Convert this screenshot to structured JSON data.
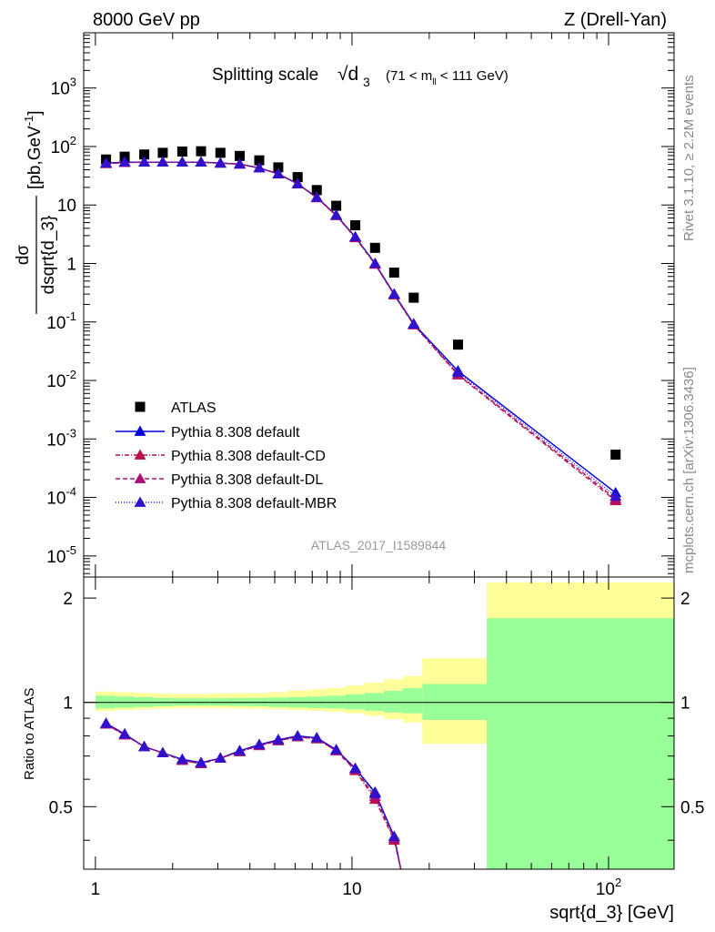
{
  "header": {
    "left": "8000 GeV pp",
    "right": "Z (Drell-Yan)"
  },
  "side_labels": {
    "rivet": "Rivet 3.1.10, ≥ 2.2M events",
    "mcplots": "mcplots.cern.ch [arXiv:1306.3436]"
  },
  "chart_data": [
    {
      "type": "scatter",
      "title": "Splitting scale",
      "title_symbol": "√d",
      "title_sub": "3",
      "title_cut": "(71 < m",
      "title_cut_sub": "ll",
      "title_cut_end": " < 111 GeV)",
      "ylabel": "dσ / dsqrt{d_3} [pb,GeV⁻¹]",
      "ylabel_num": "dσ",
      "ylabel_den": "dsqrt{d_3}",
      "ylabel_units": "[pb,GeV",
      "ylabel_units_sup": "-1",
      "ylabel_units_end": "]",
      "watermark": "ATLAS_2017_I1589844",
      "xscale": "log",
      "yscale": "log",
      "xlim": [
        0.9,
        180
      ],
      "ylim": [
        4.36e-06,
        8800
      ],
      "y_ticks": [
        {
          "v": 1e-05,
          "m": "10",
          "e": "-5"
        },
        {
          "v": 0.0001,
          "m": "10",
          "e": "-4"
        },
        {
          "v": 0.001,
          "m": "10",
          "e": "-3"
        },
        {
          "v": 0.01,
          "m": "10",
          "e": "-2"
        },
        {
          "v": 0.1,
          "m": "10",
          "e": "-1"
        },
        {
          "v": 1,
          "m": "1",
          "e": ""
        },
        {
          "v": 10,
          "m": "10",
          "e": ""
        },
        {
          "v": 100,
          "m": "10",
          "e": "2"
        },
        {
          "v": 1000,
          "m": "10",
          "e": "3"
        }
      ],
      "legend": {
        "position": "left",
        "entries": [
          "ATLAS",
          "Pythia 8.308 default",
          "Pythia 8.308 default-CD",
          "Pythia 8.308 default-DL",
          "Pythia 8.308 default-MBR"
        ]
      },
      "series": [
        {
          "name": "ATLAS",
          "marker": "square",
          "color": "#000000",
          "x": [
            1.1,
            1.3,
            1.55,
            1.83,
            2.18,
            2.58,
            3.07,
            3.65,
            4.35,
            5.16,
            6.14,
            7.29,
            8.68,
            10.3,
            12.3,
            14.6,
            17.4,
            25.9,
            106.5
          ],
          "y": [
            60,
            67,
            73,
            78,
            82,
            83,
            78,
            69,
            58,
            44,
            30,
            18,
            9.7,
            4.5,
            1.85,
            0.7,
            0.26,
            0.041,
            0.00054
          ]
        },
        {
          "name": "Pythia 8.308 default",
          "marker": "triangle",
          "color": "#0000dd",
          "dash": "",
          "x": [
            1.1,
            1.3,
            1.55,
            1.83,
            2.18,
            2.58,
            3.07,
            3.65,
            4.35,
            5.16,
            6.14,
            7.29,
            8.68,
            10.3,
            12.3,
            14.6,
            17.4,
            25.9,
            106.5
          ],
          "y": [
            52,
            54,
            54,
            54,
            54,
            54,
            52,
            50,
            43,
            34,
            23,
            13.5,
            6.7,
            2.85,
            1.0,
            0.3,
            0.093,
            0.0145,
            0.00012
          ]
        },
        {
          "name": "Pythia 8.308 default-CD",
          "marker": "triangle",
          "color": "#bb1144",
          "dash": "5,2,1,2",
          "x": [
            1.1,
            1.3,
            1.55,
            1.83,
            2.18,
            2.58,
            3.07,
            3.65,
            4.35,
            5.16,
            6.14,
            7.29,
            8.68,
            10.3,
            12.3,
            14.6,
            17.4,
            25.9,
            106.5
          ],
          "y": [
            51,
            53,
            54,
            54,
            54,
            54,
            52,
            50,
            43,
            34,
            23,
            13.3,
            6.6,
            2.75,
            0.97,
            0.29,
            0.089,
            0.0124,
            8.8e-05
          ]
        },
        {
          "name": "Pythia 8.308 default-DL",
          "marker": "triangle",
          "color": "#aa1177",
          "dash": "5,3",
          "x": [
            1.1,
            1.3,
            1.55,
            1.83,
            2.18,
            2.58,
            3.07,
            3.65,
            4.35,
            5.16,
            6.14,
            7.29,
            8.68,
            10.3,
            12.3,
            14.6,
            17.4,
            25.9,
            106.5
          ],
          "y": [
            51,
            53,
            54,
            54,
            54,
            54,
            52,
            50,
            43,
            34,
            23,
            13.3,
            6.6,
            2.8,
            0.98,
            0.29,
            0.09,
            0.0128,
            9.5e-05
          ]
        },
        {
          "name": "Pythia 8.308 default-MBR",
          "marker": "triangle",
          "color": "#3311cc",
          "dash": "1,2",
          "x": [
            1.1,
            1.3,
            1.55,
            1.83,
            2.18,
            2.58,
            3.07,
            3.65,
            4.35,
            5.16,
            6.14,
            7.29,
            8.68,
            10.3,
            12.3,
            14.6,
            17.4,
            25.9,
            106.5
          ],
          "y": [
            52,
            54,
            54,
            54,
            54,
            54,
            52,
            50,
            43,
            34,
            23,
            13.5,
            6.7,
            2.85,
            1.0,
            0.3,
            0.092,
            0.0138,
            0.000105
          ]
        }
      ]
    },
    {
      "type": "line",
      "ylabel": "Ratio to ATLAS",
      "xlabel": "sqrt{d_3} [GeV]",
      "xscale": "log",
      "xlim": [
        0.9,
        180
      ],
      "ylim": [
        0.33,
        2.3
      ],
      "reference": 1,
      "x_ticks": [
        {
          "v": 1,
          "label": "1"
        },
        {
          "v": 10,
          "label": "10"
        },
        {
          "v": 100,
          "label": "10",
          "sup": "2"
        }
      ],
      "y_ticks": [
        {
          "v": 0.5,
          "label": "0.5"
        },
        {
          "v": 1,
          "label": "1"
        },
        {
          "v": 2,
          "label": "2"
        }
      ],
      "bands": {
        "edges": [
          1.0,
          1.19,
          1.41,
          1.68,
          2.0,
          2.37,
          2.82,
          3.35,
          3.98,
          4.73,
          5.62,
          6.68,
          7.94,
          9.44,
          11.2,
          13.3,
          15.8,
          18.8,
          33.5,
          180
        ],
        "yellow_low": [
          0.945,
          0.95,
          0.955,
          0.96,
          0.962,
          0.962,
          0.962,
          0.96,
          0.958,
          0.955,
          0.95,
          0.945,
          0.94,
          0.93,
          0.915,
          0.895,
          0.875,
          0.76,
          0.33
        ],
        "yellow_high": [
          1.075,
          1.07,
          1.065,
          1.06,
          1.058,
          1.058,
          1.06,
          1.062,
          1.065,
          1.07,
          1.08,
          1.09,
          1.1,
          1.12,
          1.14,
          1.165,
          1.19,
          1.34,
          2.22
        ],
        "green_low": [
          0.96,
          0.965,
          0.97,
          0.975,
          0.978,
          0.978,
          0.978,
          0.976,
          0.975,
          0.97,
          0.967,
          0.963,
          0.96,
          0.955,
          0.945,
          0.935,
          0.93,
          0.89,
          0.33
        ],
        "green_high": [
          1.045,
          1.04,
          1.035,
          1.03,
          1.028,
          1.028,
          1.028,
          1.03,
          1.03,
          1.033,
          1.035,
          1.04,
          1.045,
          1.055,
          1.065,
          1.08,
          1.1,
          1.13,
          1.75
        ],
        "colors": {
          "yellow": "#ffff99",
          "green": "#99ff99"
        }
      },
      "series": [
        {
          "name": "Pythia 8.308 default",
          "x": [
            1.1,
            1.3,
            1.55,
            1.83,
            2.18,
            2.58,
            3.07,
            3.65,
            4.35,
            5.16,
            6.14,
            7.29,
            8.68,
            10.3,
            12.3,
            14.6,
            15.5
          ],
          "y": [
            0.87,
            0.81,
            0.745,
            0.715,
            0.685,
            0.67,
            0.69,
            0.725,
            0.755,
            0.78,
            0.8,
            0.79,
            0.73,
            0.645,
            0.55,
            0.41,
            0.33
          ]
        },
        {
          "name": "Pythia 8.308 default-CD",
          "x": [
            1.1,
            1.3,
            1.55,
            1.83,
            2.18,
            2.58,
            3.07,
            3.65,
            4.35,
            5.16,
            6.14,
            7.29,
            8.68,
            10.3,
            12.3,
            14.6,
            15.5
          ],
          "y": [
            0.865,
            0.805,
            0.745,
            0.715,
            0.68,
            0.665,
            0.69,
            0.72,
            0.75,
            0.775,
            0.795,
            0.785,
            0.725,
            0.635,
            0.525,
            0.4,
            0.33
          ]
        },
        {
          "name": "Pythia 8.308 default-DL",
          "x": [
            1.1,
            1.3,
            1.55,
            1.83,
            2.18,
            2.58,
            3.07,
            3.65,
            4.35,
            5.16,
            6.14,
            7.29,
            8.68,
            10.3,
            12.3,
            14.6,
            15.5
          ],
          "y": [
            0.865,
            0.805,
            0.745,
            0.715,
            0.68,
            0.665,
            0.69,
            0.72,
            0.75,
            0.775,
            0.795,
            0.785,
            0.725,
            0.64,
            0.535,
            0.405,
            0.33
          ]
        },
        {
          "name": "Pythia 8.308 default-MBR",
          "x": [
            1.1,
            1.3,
            1.55,
            1.83,
            2.18,
            2.58,
            3.07,
            3.65,
            4.35,
            5.16,
            6.14,
            7.29,
            8.68,
            10.3,
            12.3,
            14.6,
            15.5
          ],
          "y": [
            0.87,
            0.81,
            0.745,
            0.715,
            0.685,
            0.67,
            0.69,
            0.725,
            0.755,
            0.78,
            0.8,
            0.79,
            0.73,
            0.645,
            0.545,
            0.41,
            0.33
          ]
        }
      ]
    }
  ]
}
